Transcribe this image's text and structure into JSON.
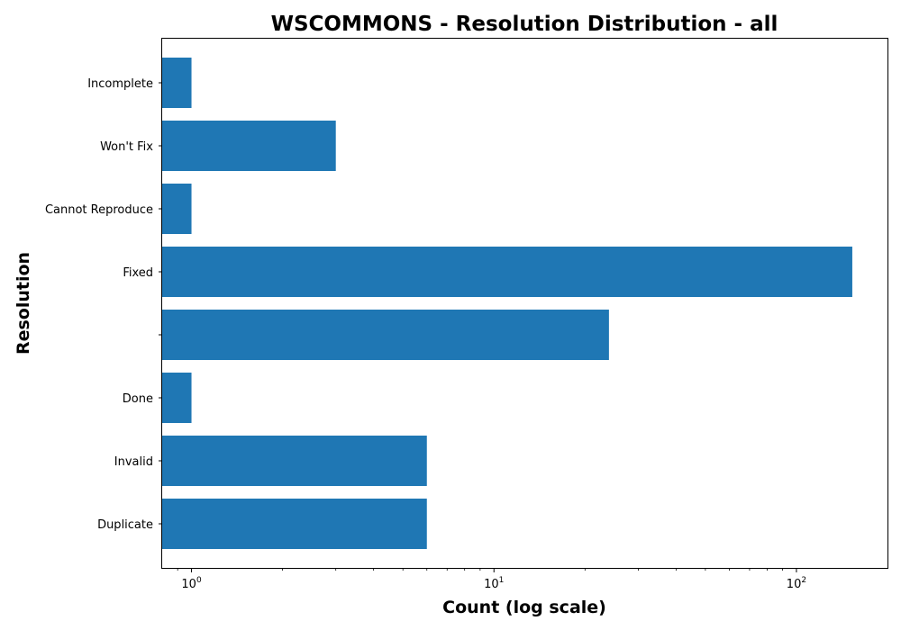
{
  "chart_data": {
    "type": "bar",
    "orientation": "horizontal",
    "title": "WSCOMMONS - Resolution Distribution - all",
    "xlabel": "Count (log scale)",
    "ylabel": "Resolution",
    "x_scale": "log",
    "xlim": [
      0.8,
      200
    ],
    "x_ticks": [
      {
        "value": 1,
        "base": "10",
        "exp": "0"
      },
      {
        "value": 10,
        "base": "10",
        "exp": "1"
      },
      {
        "value": 100,
        "base": "10",
        "exp": "2"
      }
    ],
    "categories": [
      "Duplicate",
      "Invalid",
      "Done",
      "",
      "Fixed",
      "Cannot Reproduce",
      "Won't Fix",
      "Incomplete"
    ],
    "values": [
      6,
      6,
      1,
      24,
      153,
      1,
      3,
      1
    ],
    "bar_color": "#1f77b4",
    "grid": false,
    "legend": false
  }
}
